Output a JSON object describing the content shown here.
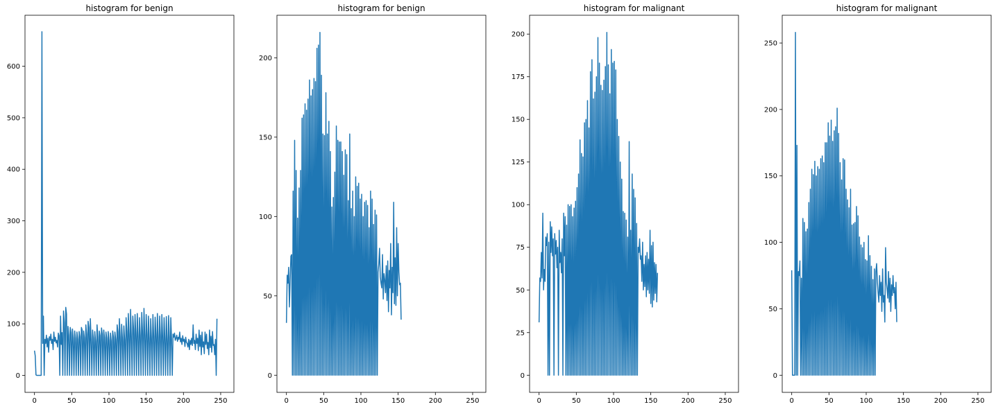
{
  "chart_data": [
    {
      "type": "line",
      "title": "histogram for benign",
      "xlabel": "",
      "ylabel": "",
      "xlim": [
        -12.75,
        267.75
      ],
      "ylim": [
        -33,
        699
      ],
      "xticks": [
        0,
        50,
        100,
        150,
        200,
        250
      ],
      "yticks": [
        0,
        100,
        200,
        300,
        400,
        500,
        600
      ],
      "grid": false,
      "color": "#1f77b4",
      "series": [
        {
          "y": [
            48,
            38,
            1,
            0,
            0,
            0,
            0,
            0,
            0,
            0,
            667,
            62,
            115,
            0,
            70,
            62,
            78,
            55,
            72,
            45,
            75,
            68,
            80,
            62,
            70,
            50,
            84,
            66,
            74,
            63,
            68,
            55,
            82,
            77,
            0,
            115,
            60,
            83,
            0,
            125,
            103,
            0,
            132,
            119,
            0,
            95,
            78,
            0,
            93,
            83,
            0,
            90,
            72,
            0,
            86,
            72,
            0,
            84,
            70,
            0,
            85,
            75,
            0,
            93,
            88,
            0,
            86,
            73,
            0,
            98,
            80,
            0,
            105,
            93,
            0,
            110,
            70,
            0,
            88,
            72,
            0,
            85,
            66,
            0,
            98,
            74,
            0,
            86,
            77,
            0,
            92,
            80,
            0,
            88,
            73,
            0,
            84,
            72,
            0,
            85,
            68,
            0,
            82,
            67,
            0,
            86,
            74,
            0,
            84,
            70,
            0,
            98,
            85,
            0,
            110,
            75,
            0,
            99,
            72,
            0,
            96,
            70,
            0,
            112,
            85,
            0,
            120,
            80,
            0,
            128,
            75,
            0,
            115,
            90,
            0,
            118,
            82,
            0,
            120,
            78,
            0,
            112,
            78,
            0,
            122,
            85,
            0,
            130,
            79,
            0,
            118,
            80,
            0,
            115,
            73,
            0,
            110,
            72,
            0,
            118,
            76,
            0,
            113,
            80,
            0,
            120,
            75,
            0,
            115,
            78,
            0,
            118,
            77,
            0,
            112,
            72,
            0,
            114,
            70,
            0,
            116,
            75,
            0,
            112,
            70,
            0,
            80,
            74,
            82,
            68,
            72,
            78,
            66,
            74,
            70,
            84,
            65,
            72,
            60,
            77,
            66,
            70,
            56,
            74,
            64,
            62,
            55,
            70,
            50,
            68,
            60,
            72,
            58,
            98,
            62,
            68,
            50,
            80,
            62,
            72,
            48,
            88,
            56,
            78,
            40,
            84,
            55,
            65,
            42,
            84,
            60,
            80,
            52,
            64,
            40,
            88,
            54,
            76,
            45,
            85,
            58,
            60,
            40,
            70,
            0,
            110
          ]
        }
      ]
    },
    {
      "type": "line",
      "title": "histogram for benign",
      "xlabel": "",
      "ylabel": "",
      "xlim": [
        -12.75,
        267.75
      ],
      "ylim": [
        -10.8,
        226.8
      ],
      "xticks": [
        0,
        50,
        100,
        150,
        200,
        250
      ],
      "yticks": [
        0,
        50,
        100,
        150,
        200
      ],
      "grid": false,
      "color": "#1f77b4",
      "series": [
        {
          "y": [
            33,
            63,
            58,
            68,
            43,
            60,
            75,
            76,
            0,
            116,
            0,
            148,
            0,
            129,
            0,
            99,
            0,
            118,
            0,
            129,
            0,
            162,
            0,
            164,
            0,
            171,
            0,
            167,
            0,
            174,
            0,
            186,
            0,
            176,
            0,
            180,
            0,
            187,
            0,
            185,
            0,
            206,
            0,
            208,
            0,
            216,
            0,
            189,
            0,
            152,
            0,
            151,
            0,
            178,
            0,
            152,
            0,
            160,
            0,
            141,
            0,
            106,
            0,
            112,
            0,
            128,
            0,
            157,
            0,
            148,
            0,
            147,
            0,
            147,
            0,
            141,
            0,
            126,
            0,
            142,
            0,
            139,
            0,
            110,
            0,
            152,
            0,
            105,
            0,
            116,
            0,
            100,
            0,
            125,
            0,
            119,
            0,
            121,
            0,
            111,
            0,
            114,
            0,
            100,
            0,
            109,
            0,
            110,
            0,
            107,
            0,
            93,
            0,
            116,
            0,
            111,
            0,
            95,
            0,
            104,
            0,
            101,
            0,
            65,
            70,
            80,
            62,
            58,
            55,
            76,
            48,
            64,
            60,
            52,
            69,
            47,
            72,
            40,
            66,
            55,
            83,
            38,
            68,
            52,
            109,
            45,
            74,
            44,
            93,
            50,
            83,
            65,
            57,
            58,
            35
          ]
        }
      ]
    },
    {
      "type": "line",
      "title": "histogram for malignant",
      "xlabel": "",
      "ylabel": "",
      "xlim": [
        -12.75,
        267.75
      ],
      "ylim": [
        -10.05,
        211.05
      ],
      "xticks": [
        0,
        50,
        100,
        150,
        200,
        250
      ],
      "yticks": [
        0,
        25,
        50,
        75,
        100,
        125,
        150,
        175,
        200
      ],
      "grid": false,
      "color": "#1f77b4",
      "series": [
        {
          "y": [
            31,
            57,
            55,
            72,
            57,
            95,
            50,
            62,
            55,
            81,
            76,
            83,
            0,
            78,
            0,
            90,
            72,
            87,
            70,
            80,
            0,
            83,
            71,
            79,
            63,
            75,
            0,
            85,
            66,
            72,
            60,
            80,
            0,
            95,
            70,
            93,
            0,
            88,
            0,
            100,
            0,
            99,
            0,
            100,
            0,
            93,
            0,
            98,
            0,
            102,
            0,
            110,
            0,
            118,
            0,
            138,
            0,
            130,
            0,
            128,
            0,
            148,
            0,
            150,
            0,
            161,
            0,
            145,
            0,
            178,
            0,
            185,
            0,
            162,
            0,
            166,
            0,
            175,
            0,
            198,
            0,
            183,
            0,
            170,
            0,
            167,
            0,
            173,
            0,
            181,
            0,
            201,
            0,
            182,
            0,
            165,
            0,
            191,
            0,
            183,
            0,
            184,
            0,
            179,
            0,
            150,
            0,
            140,
            0,
            125,
            0,
            115,
            0,
            96,
            0,
            95,
            0,
            91,
            0,
            81,
            0,
            137,
            0,
            85,
            0,
            118,
            0,
            109,
            0,
            104,
            0,
            89,
            0,
            75,
            72,
            80,
            68,
            70,
            55,
            78,
            50,
            65,
            52,
            70,
            46,
            72,
            50,
            68,
            48,
            85,
            42,
            76,
            40,
            78,
            44,
            66,
            48,
            65,
            43,
            60
          ]
        }
      ]
    },
    {
      "type": "line",
      "title": "histogram for malignant",
      "xlabel": "",
      "ylabel": "",
      "xlim": [
        -12.75,
        267.75
      ],
      "ylim": [
        -12.9,
        270.9
      ],
      "xticks": [
        0,
        50,
        100,
        150,
        200,
        250
      ],
      "yticks": [
        0,
        50,
        100,
        150,
        200,
        250
      ],
      "grid": false,
      "color": "#1f77b4",
      "series": [
        {
          "y": [
            79,
            0,
            0,
            0,
            0,
            258,
            0,
            173,
            0,
            78,
            75,
            86,
            0,
            73,
            0,
            118,
            0,
            115,
            0,
            108,
            0,
            110,
            0,
            130,
            0,
            140,
            0,
            155,
            0,
            151,
            0,
            161,
            0,
            150,
            0,
            157,
            0,
            155,
            0,
            163,
            0,
            165,
            0,
            160,
            0,
            175,
            0,
            175,
            0,
            190,
            0,
            180,
            0,
            192,
            0,
            176,
            0,
            184,
            0,
            187,
            0,
            201,
            0,
            182,
            0,
            160,
            0,
            147,
            0,
            163,
            0,
            162,
            0,
            140,
            0,
            132,
            0,
            126,
            0,
            140,
            0,
            113,
            0,
            114,
            0,
            115,
            0,
            127,
            0,
            120,
            0,
            104,
            0,
            98,
            0,
            96,
            0,
            100,
            0,
            87,
            0,
            86,
            0,
            105,
            0,
            90,
            0,
            82,
            0,
            72,
            0,
            80,
            0,
            78,
            84,
            70,
            62,
            55,
            75,
            60,
            70,
            48,
            80,
            55,
            60,
            40,
            96,
            70,
            65,
            58,
            78,
            55,
            73,
            48,
            68,
            60,
            75,
            62,
            66,
            50,
            70,
            40
          ]
        }
      ]
    }
  ]
}
